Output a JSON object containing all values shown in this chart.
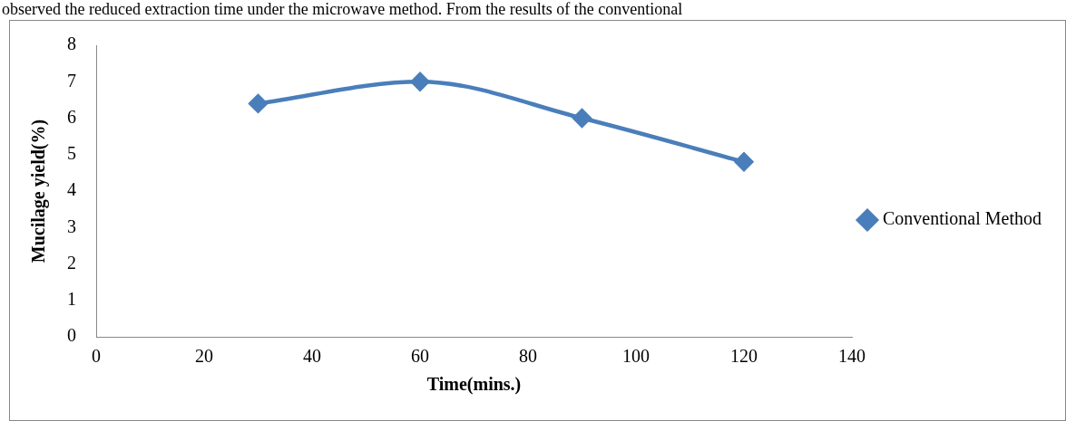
{
  "chart_data": {
    "type": "line",
    "xlabel": "Time(mins.)",
    "ylabel": "Mucilage yield(%)",
    "annotations": [
      "observed the reduced extraction time under the microwave method. From the results of the conventional"
    ],
    "x": [
      30,
      60,
      90,
      120
    ],
    "series": [
      {
        "name": "Conventional Method",
        "color": "#4a7ebb",
        "values": [
          6.4,
          7.0,
          6.0,
          4.8
        ]
      }
    ],
    "xlim": [
      0,
      140
    ],
    "xticks": [
      0,
      20,
      40,
      60,
      80,
      100,
      120,
      140
    ],
    "ylim": [
      0,
      8
    ],
    "yticks": [
      0,
      1,
      2,
      3,
      4,
      5,
      6,
      7,
      8
    ],
    "grid": false,
    "legend": "right",
    "marker": "diamond",
    "line_style": "solid"
  }
}
